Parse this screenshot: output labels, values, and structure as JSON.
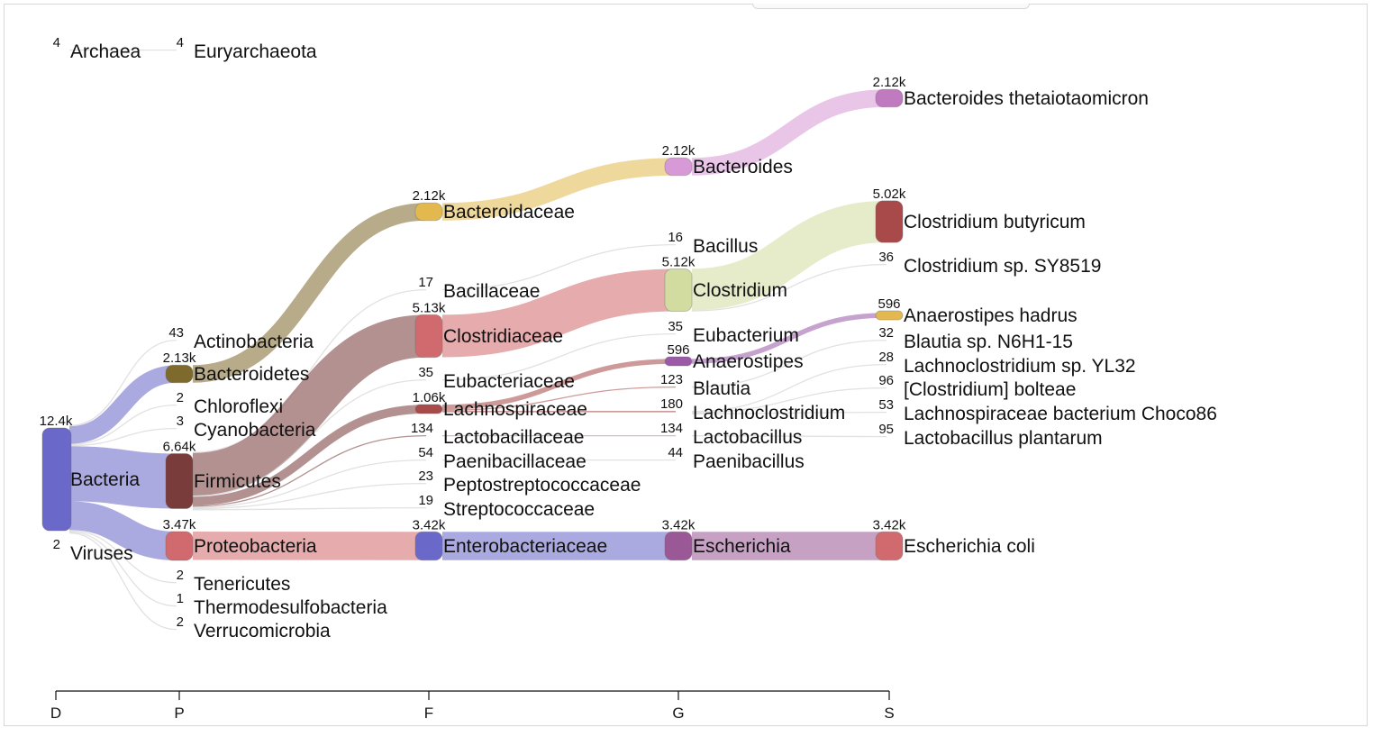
{
  "chart_data": {
    "type": "sankey",
    "title": "",
    "levels": [
      {
        "key": "D",
        "label": "D"
      },
      {
        "key": "P",
        "label": "P"
      },
      {
        "key": "F",
        "label": "F"
      },
      {
        "key": "G",
        "label": "G"
      },
      {
        "key": "S",
        "label": "S"
      }
    ],
    "nodes": [
      {
        "id": "bacteria",
        "level": "D",
        "name": "Bacteria",
        "count": "12.4k",
        "value": 12400,
        "color": "#6a68c8"
      },
      {
        "id": "archaea",
        "level": "D",
        "name": "Archaea",
        "count": "4",
        "value": 4,
        "color": "#9a9ad8"
      },
      {
        "id": "viruses",
        "level": "D",
        "name": "Viruses",
        "count": "2",
        "value": 2,
        "color": "#9a9ad8"
      },
      {
        "id": "euryarchaeota",
        "level": "P",
        "name": "Euryarchaeota",
        "count": "4",
        "value": 4,
        "color": "#cccccc"
      },
      {
        "id": "actinobacteria",
        "level": "P",
        "name": "Actinobacteria",
        "count": "43",
        "value": 43,
        "color": "#9999d8"
      },
      {
        "id": "bacteroidetes",
        "level": "P",
        "name": "Bacteroidetes",
        "count": "2.13k",
        "value": 2130,
        "color": "#7f6a2e"
      },
      {
        "id": "chloroflexi",
        "level": "P",
        "name": "Chloroflexi",
        "count": "2",
        "value": 2,
        "color": "#cccccc"
      },
      {
        "id": "cyanobacteria",
        "level": "P",
        "name": "Cyanobacteria",
        "count": "3",
        "value": 3,
        "color": "#cccccc"
      },
      {
        "id": "firmicutes",
        "level": "P",
        "name": "Firmicutes",
        "count": "6.64k",
        "value": 6640,
        "color": "#7a3b3b"
      },
      {
        "id": "proteobacteria",
        "level": "P",
        "name": "Proteobacteria",
        "count": "3.47k",
        "value": 3470,
        "color": "#d06a6e"
      },
      {
        "id": "tenericutes",
        "level": "P",
        "name": "Tenericutes",
        "count": "2",
        "value": 2,
        "color": "#cccccc"
      },
      {
        "id": "thermodesulfobacteria",
        "level": "P",
        "name": "Thermodesulfobacteria",
        "count": "1",
        "value": 1,
        "color": "#cccccc"
      },
      {
        "id": "verrucomicrobia",
        "level": "P",
        "name": "Verrucomicrobia",
        "count": "2",
        "value": 2,
        "color": "#cccccc"
      },
      {
        "id": "bacteroidaceae",
        "level": "F",
        "name": "Bacteroidaceae",
        "count": "2.12k",
        "value": 2120,
        "color": "#e3b94f"
      },
      {
        "id": "bacillaceae",
        "level": "F",
        "name": "Bacillaceae",
        "count": "17",
        "value": 17,
        "color": "#cccccc"
      },
      {
        "id": "clostridiaceae",
        "level": "F",
        "name": "Clostridiaceae",
        "count": "5.13k",
        "value": 5130,
        "color": "#d06a6e"
      },
      {
        "id": "eubacteriaceae",
        "level": "F",
        "name": "Eubacteriaceae",
        "count": "35",
        "value": 35,
        "color": "#cccccc"
      },
      {
        "id": "lachnospiraceae",
        "level": "F",
        "name": "Lachnospiraceae",
        "count": "1.06k",
        "value": 1060,
        "color": "#a84a4a"
      },
      {
        "id": "lactobacillaceae",
        "level": "F",
        "name": "Lactobacillaceae",
        "count": "134",
        "value": 134,
        "color": "#b98a8a"
      },
      {
        "id": "paenibacillaceae",
        "level": "F",
        "name": "Paenibacillaceae",
        "count": "54",
        "value": 54,
        "color": "#cccccc"
      },
      {
        "id": "peptostreptococcaceae",
        "level": "F",
        "name": "Peptostreptococcaceae",
        "count": "23",
        "value": 23,
        "color": "#cccccc"
      },
      {
        "id": "streptococcaceae",
        "level": "F",
        "name": "Streptococcaceae",
        "count": "19",
        "value": 19,
        "color": "#cccccc"
      },
      {
        "id": "enterobacteriaceae",
        "level": "F",
        "name": "Enterobacteriaceae",
        "count": "3.42k",
        "value": 3420,
        "color": "#6a68c8"
      },
      {
        "id": "bacteroides",
        "level": "G",
        "name": "Bacteroides",
        "count": "2.12k",
        "value": 2120,
        "color": "#d79ad6"
      },
      {
        "id": "bacillus",
        "level": "G",
        "name": "Bacillus",
        "count": "16",
        "value": 16,
        "color": "#cccccc"
      },
      {
        "id": "clostridium",
        "level": "G",
        "name": "Clostridium",
        "count": "5.12k",
        "value": 5120,
        "color": "#d2dca0"
      },
      {
        "id": "eubacterium",
        "level": "G",
        "name": "Eubacterium",
        "count": "35",
        "value": 35,
        "color": "#cccccc"
      },
      {
        "id": "anaerostipes",
        "level": "G",
        "name": "Anaerostipes",
        "count": "596",
        "value": 596,
        "color": "#9a5aa8"
      },
      {
        "id": "blautia",
        "level": "G",
        "name": "Blautia",
        "count": "123",
        "value": 123,
        "color": "#cccccc"
      },
      {
        "id": "lachnoclostridium",
        "level": "G",
        "name": "Lachnoclostridium",
        "count": "180",
        "value": 180,
        "color": "#d8a0a0"
      },
      {
        "id": "lactobacillus",
        "level": "G",
        "name": "Lactobacillus",
        "count": "134",
        "value": 134,
        "color": "#d8a0a0"
      },
      {
        "id": "paenibacillus",
        "level": "G",
        "name": "Paenibacillus",
        "count": "44",
        "value": 44,
        "color": "#cccccc"
      },
      {
        "id": "escherichia",
        "level": "G",
        "name": "Escherichia",
        "count": "3.42k",
        "value": 3420,
        "color": "#9a5896"
      },
      {
        "id": "bthetaiotaomicron",
        "level": "S",
        "name": "Bacteroides thetaiotaomicron",
        "count": "2.12k",
        "value": 2120,
        "color": "#c07ac0"
      },
      {
        "id": "cbutyricum",
        "level": "S",
        "name": "Clostridium butyricum",
        "count": "5.02k",
        "value": 5020,
        "color": "#a84a4a"
      },
      {
        "id": "csy8519",
        "level": "S",
        "name": "Clostridium sp. SY8519",
        "count": "36",
        "value": 36,
        "color": "#cccccc"
      },
      {
        "id": "ahadrus",
        "level": "S",
        "name": "Anaerostipes hadrus",
        "count": "596",
        "value": 596,
        "color": "#e3b94f"
      },
      {
        "id": "blautiasp",
        "level": "S",
        "name": "Blautia sp. N6H1-15",
        "count": "32",
        "value": 32,
        "color": "#cccccc"
      },
      {
        "id": "lachnoyl32",
        "level": "S",
        "name": "Lachnoclostridium sp. YL32",
        "count": "28",
        "value": 28,
        "color": "#cccccc"
      },
      {
        "id": "cbolteae",
        "level": "S",
        "name": "[Clostridium] bolteae",
        "count": "96",
        "value": 96,
        "color": "#cccccc"
      },
      {
        "id": "choco86",
        "level": "S",
        "name": "Lachnospiraceae bacterium Choco86",
        "count": "53",
        "value": 53,
        "color": "#cccccc"
      },
      {
        "id": "lplantarum",
        "level": "S",
        "name": "Lactobacillus plantarum",
        "count": "95",
        "value": 95,
        "color": "#cccccc"
      },
      {
        "id": "ecoli",
        "level": "S",
        "name": "Escherichia coli",
        "count": "3.42k",
        "value": 3420,
        "color": "#d06a6e"
      }
    ],
    "links": [
      {
        "source": "bacteria",
        "target": "actinobacteria",
        "value": 43
      },
      {
        "source": "bacteria",
        "target": "bacteroidetes",
        "value": 2130
      },
      {
        "source": "bacteria",
        "target": "chloroflexi",
        "value": 2
      },
      {
        "source": "bacteria",
        "target": "cyanobacteria",
        "value": 3
      },
      {
        "source": "bacteria",
        "target": "firmicutes",
        "value": 6640
      },
      {
        "source": "bacteria",
        "target": "proteobacteria",
        "value": 3470
      },
      {
        "source": "bacteria",
        "target": "tenericutes",
        "value": 2
      },
      {
        "source": "bacteria",
        "target": "thermodesulfobacteria",
        "value": 1
      },
      {
        "source": "bacteria",
        "target": "verrucomicrobia",
        "value": 2
      },
      {
        "source": "archaea",
        "target": "euryarchaeota",
        "value": 4
      },
      {
        "source": "bacteroidetes",
        "target": "bacteroidaceae",
        "value": 2120
      },
      {
        "source": "firmicutes",
        "target": "bacillaceae",
        "value": 17
      },
      {
        "source": "firmicutes",
        "target": "clostridiaceae",
        "value": 5130
      },
      {
        "source": "firmicutes",
        "target": "eubacteriaceae",
        "value": 35
      },
      {
        "source": "firmicutes",
        "target": "lachnospiraceae",
        "value": 1060
      },
      {
        "source": "firmicutes",
        "target": "lactobacillaceae",
        "value": 134
      },
      {
        "source": "firmicutes",
        "target": "paenibacillaceae",
        "value": 54
      },
      {
        "source": "firmicutes",
        "target": "peptostreptococcaceae",
        "value": 23
      },
      {
        "source": "firmicutes",
        "target": "streptococcaceae",
        "value": 19
      },
      {
        "source": "proteobacteria",
        "target": "enterobacteriaceae",
        "value": 3420
      },
      {
        "source": "bacteroidaceae",
        "target": "bacteroides",
        "value": 2120
      },
      {
        "source": "bacillaceae",
        "target": "bacillus",
        "value": 16
      },
      {
        "source": "clostridiaceae",
        "target": "clostridium",
        "value": 5120
      },
      {
        "source": "eubacteriaceae",
        "target": "eubacterium",
        "value": 35
      },
      {
        "source": "lachnospiraceae",
        "target": "anaerostipes",
        "value": 596
      },
      {
        "source": "lachnospiraceae",
        "target": "blautia",
        "value": 123
      },
      {
        "source": "lachnospiraceae",
        "target": "lachnoclostridium",
        "value": 180
      },
      {
        "source": "lactobacillaceae",
        "target": "lactobacillus",
        "value": 134
      },
      {
        "source": "paenibacillaceae",
        "target": "paenibacillus",
        "value": 44
      },
      {
        "source": "enterobacteriaceae",
        "target": "escherichia",
        "value": 3420
      },
      {
        "source": "bacteroides",
        "target": "bthetaiotaomicron",
        "value": 2120
      },
      {
        "source": "clostridium",
        "target": "cbutyricum",
        "value": 5020
      },
      {
        "source": "clostridium",
        "target": "csy8519",
        "value": 36
      },
      {
        "source": "anaerostipes",
        "target": "ahadrus",
        "value": 596
      },
      {
        "source": "blautia",
        "target": "blautiasp",
        "value": 32
      },
      {
        "source": "lachnoclostridium",
        "target": "lachnoyl32",
        "value": 28
      },
      {
        "source": "lachnoclostridium",
        "target": "cbolteae",
        "value": 96
      },
      {
        "source": "lachnoclostridium",
        "target": "choco86",
        "value": 53
      },
      {
        "source": "lactobacillus",
        "target": "lplantarum",
        "value": 95
      },
      {
        "source": "escherichia",
        "target": "ecoli",
        "value": 3420
      }
    ]
  }
}
